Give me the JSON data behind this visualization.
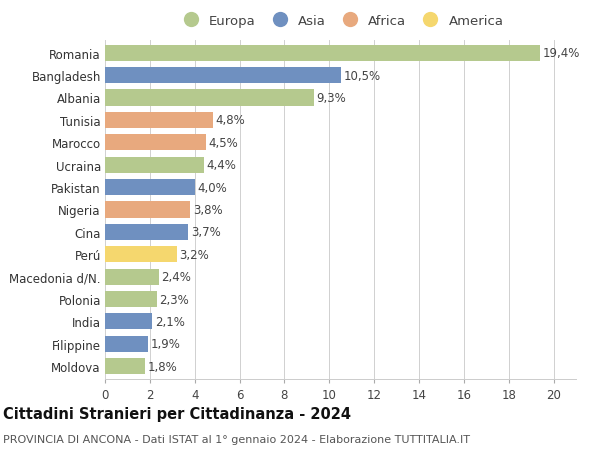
{
  "categories": [
    "Romania",
    "Bangladesh",
    "Albania",
    "Tunisia",
    "Marocco",
    "Ucraina",
    "Pakistan",
    "Nigeria",
    "Cina",
    "Perú",
    "Macedonia d/N.",
    "Polonia",
    "India",
    "Filippine",
    "Moldova"
  ],
  "values": [
    19.4,
    10.5,
    9.3,
    4.8,
    4.5,
    4.4,
    4.0,
    3.8,
    3.7,
    3.2,
    2.4,
    2.3,
    2.1,
    1.9,
    1.8
  ],
  "labels": [
    "19,4%",
    "10,5%",
    "9,3%",
    "4,8%",
    "4,5%",
    "4,4%",
    "4,0%",
    "3,8%",
    "3,7%",
    "3,2%",
    "2,4%",
    "2,3%",
    "2,1%",
    "1,9%",
    "1,8%"
  ],
  "continent": [
    "Europa",
    "Asia",
    "Europa",
    "Africa",
    "Africa",
    "Europa",
    "Asia",
    "Africa",
    "Asia",
    "America",
    "Europa",
    "Europa",
    "Asia",
    "Asia",
    "Europa"
  ],
  "colors": {
    "Europa": "#b5c98e",
    "Asia": "#6f90c0",
    "Africa": "#e8a97e",
    "America": "#f5d76e"
  },
  "title": "Cittadini Stranieri per Cittadinanza - 2024",
  "subtitle": "PROVINCIA DI ANCONA - Dati ISTAT al 1° gennaio 2024 - Elaborazione TUTTITALIA.IT",
  "xlim": [
    0,
    21
  ],
  "xticks": [
    0,
    2,
    4,
    6,
    8,
    10,
    12,
    14,
    16,
    18,
    20
  ],
  "background_color": "#ffffff",
  "grid_color": "#d0d0d0",
  "bar_height": 0.72,
  "label_fontsize": 8.5,
  "title_fontsize": 10.5,
  "subtitle_fontsize": 8,
  "tick_fontsize": 8.5,
  "legend_fontsize": 9.5,
  "legend_entries": [
    "Europa",
    "Asia",
    "Africa",
    "America"
  ]
}
